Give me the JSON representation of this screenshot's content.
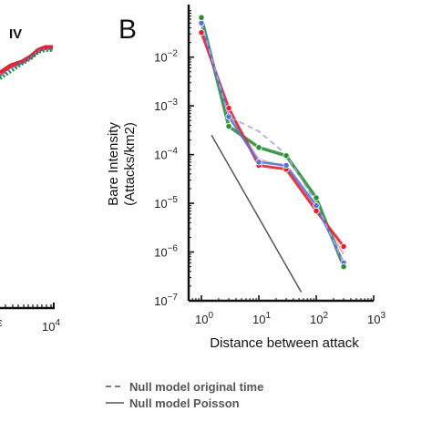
{
  "left_panel": {
    "roman_label": "IV",
    "x_tick_label": "10",
    "x_tick_exp": "4",
    "x_cut_label": "ε"
  },
  "panel_letter": "B",
  "y_title_line1": "Bare Intensity",
  "y_title_line2": "(Attacks/km2)",
  "x_title": "Distance between attack",
  "x_ticks": [
    {
      "value": 1,
      "base": "10",
      "exp": "0"
    },
    {
      "value": 10,
      "base": "10",
      "exp": "1"
    },
    {
      "value": 100,
      "base": "10",
      "exp": "2"
    },
    {
      "value": 1000,
      "base": "10",
      "exp": "3"
    }
  ],
  "y_ticks": [
    {
      "value": 1e-07,
      "base": "10",
      "exp": "−7"
    },
    {
      "value": 1e-06,
      "base": "10",
      "exp": "−6"
    },
    {
      "value": 1e-05,
      "base": "10",
      "exp": "−5"
    },
    {
      "value": 0.0001,
      "base": "10",
      "exp": "−4"
    },
    {
      "value": 0.001,
      "base": "10",
      "exp": "−3"
    },
    {
      "value": 0.01,
      "base": "10",
      "exp": "−2"
    }
  ],
  "legend": [
    {
      "label": "Null model original time",
      "style": "dashed"
    },
    {
      "label": "Null model Poisson",
      "style": "solid"
    }
  ],
  "chart_data": [
    {
      "type": "line",
      "xscale": "log",
      "yscale": "log",
      "xlim": [
        0.6,
        1000
      ],
      "ylim": [
        1e-07,
        0.12
      ],
      "xlabel": "Distance between attack",
      "ylabel": "Bare Intensity (Attacks/km2)",
      "series": [
        {
          "color": "#e0242f",
          "x": [
            1,
            3,
            10,
            30,
            100,
            300
          ],
          "y": [
            0.032,
            0.0009,
            6e-05,
            5e-05,
            7e-06,
            1.3e-06
          ]
        },
        {
          "color": "#2a8f37",
          "x": [
            1,
            3,
            10,
            30,
            100,
            300
          ],
          "y": [
            0.065,
            0.00038,
            0.00014,
            9.5e-05,
            1.3e-05,
            5e-07
          ]
        },
        {
          "color": "#5d72d6",
          "x": [
            1,
            3,
            10,
            30,
            100,
            300
          ],
          "y": [
            0.05,
            0.0006,
            7e-05,
            6e-05,
            9e-06,
            6e-07
          ]
        },
        {
          "color": "#d9a3a6",
          "x": [
            1,
            3,
            10,
            30,
            100,
            300
          ],
          "y": [
            0.04,
            0.0007,
            8e-05,
            5.5e-05,
            8e-06,
            9e-07
          ]
        }
      ],
      "null_original_time": {
        "color": "#9fa8e8",
        "style": "dashed",
        "x": [
          1,
          3,
          10,
          30,
          100,
          300
        ],
        "y": [
          0.05,
          0.0006,
          0.0003,
          0.0001,
          1e-05,
          6e-07
        ]
      },
      "null_poisson": {
        "color": "#555555",
        "style": "solid",
        "x": [
          1.5,
          55
        ],
        "y": [
          0.00025,
          1.5e-07
        ]
      }
    },
    {
      "type": "line",
      "series": [
        {
          "color": "#e0242f"
        },
        {
          "color": "#2a8f37"
        },
        {
          "color": "#5d72d6"
        }
      ]
    }
  ]
}
